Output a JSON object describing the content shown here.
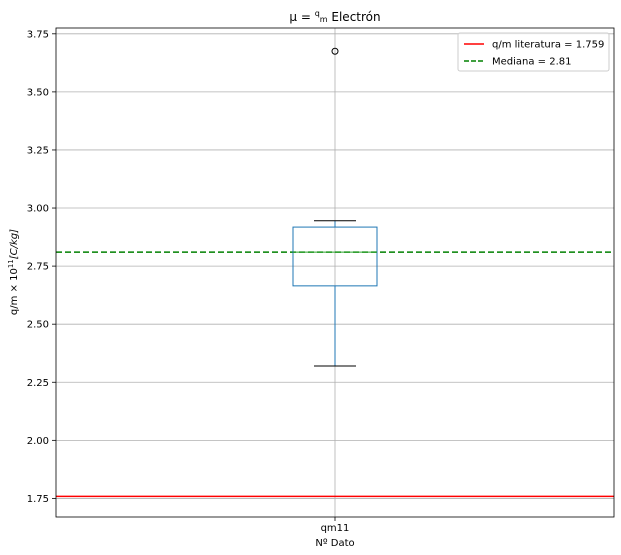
{
  "chart_data": {
    "type": "box",
    "title": {
      "pre": "μ = ",
      "frac_num": "q",
      "frac_den": "m",
      "post": " Electrón"
    },
    "xlabel": "Nº Dato",
    "ylabel": {
      "pre": "q/m × 10",
      "sup": "11",
      "post": "[C/kg]"
    },
    "categories": [
      "qm11"
    ],
    "ylim": [
      1.67,
      3.775
    ],
    "yticks": [
      1.75,
      2.0,
      2.25,
      2.5,
      2.75,
      3.0,
      3.25,
      3.5,
      3.75
    ],
    "ytick_labels": [
      "1.75",
      "2.00",
      "2.25",
      "2.50",
      "2.75",
      "3.00",
      "3.25",
      "3.50",
      "3.75"
    ],
    "grid": true,
    "boxes": [
      {
        "category": "qm11",
        "whisker_low": 2.32,
        "q1": 2.665,
        "median": 2.81,
        "q3": 2.918,
        "whisker_high": 2.945,
        "outliers": [
          3.675
        ]
      }
    ],
    "reference_lines": [
      {
        "label": "q/m literatura = 1.759",
        "value": 1.759,
        "color": "#ff0000",
        "style": "solid"
      },
      {
        "label": "Mediana = 2.81",
        "value": 2.81,
        "color": "#008000",
        "style": "dashed"
      }
    ],
    "legend_position": "top-right",
    "box_color": "#1f77b4"
  }
}
